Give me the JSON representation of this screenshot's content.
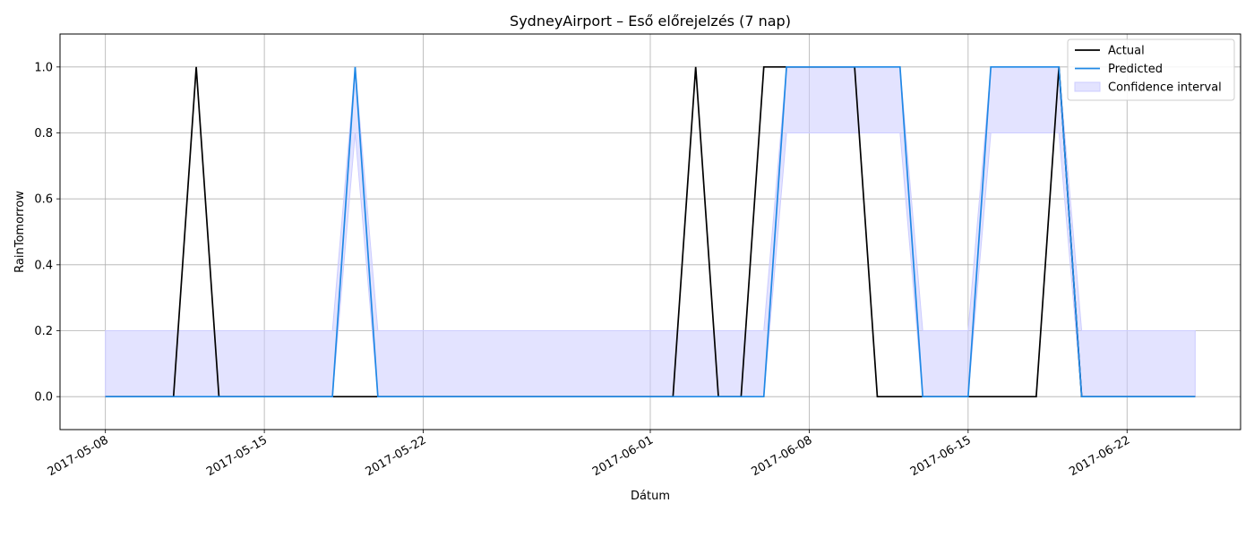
{
  "chart_data": {
    "type": "line",
    "title": "SydneyAirport – Eső előrejelzés (7 nap)",
    "xlabel": "Dátum",
    "ylabel": "RainTomorrow",
    "xlim": [
      "2017-05-06",
      "2017-06-27"
    ],
    "ylim": [
      -0.1,
      1.1
    ],
    "yticks": [
      0.0,
      0.2,
      0.4,
      0.6,
      0.8,
      1.0
    ],
    "ytick_labels": [
      "0.0",
      "0.2",
      "0.4",
      "0.6",
      "0.8",
      "1.0"
    ],
    "xticks": [
      "2017-05-08",
      "2017-05-15",
      "2017-05-22",
      "2017-06-01",
      "2017-06-08",
      "2017-06-15",
      "2017-06-22"
    ],
    "grid": true,
    "legend_position": "top-right",
    "series": [
      {
        "name": "Actual",
        "color": "#000000",
        "points": [
          [
            "2017-05-08",
            0
          ],
          [
            "2017-05-11",
            0
          ],
          [
            "2017-05-12",
            1
          ],
          [
            "2017-05-13",
            0
          ],
          [
            "2017-06-02",
            0
          ],
          [
            "2017-06-03",
            1
          ],
          [
            "2017-06-04",
            0
          ],
          [
            "2017-06-05",
            0
          ],
          [
            "2017-06-06",
            1
          ],
          [
            "2017-06-10",
            1
          ],
          [
            "2017-06-11",
            0
          ],
          [
            "2017-06-18",
            0
          ],
          [
            "2017-06-19",
            1
          ],
          [
            "2017-06-20",
            0
          ],
          [
            "2017-06-25",
            0
          ]
        ]
      },
      {
        "name": "Predicted",
        "color": "#1f88e5",
        "points": [
          [
            "2017-05-08",
            0
          ],
          [
            "2017-05-18",
            0
          ],
          [
            "2017-05-19",
            1
          ],
          [
            "2017-05-20",
            0
          ],
          [
            "2017-06-06",
            0
          ],
          [
            "2017-06-07",
            1
          ],
          [
            "2017-06-12",
            1
          ],
          [
            "2017-06-13",
            0
          ],
          [
            "2017-06-15",
            0
          ],
          [
            "2017-06-16",
            1
          ],
          [
            "2017-06-19",
            1
          ],
          [
            "2017-06-20",
            0
          ],
          [
            "2017-06-25",
            0
          ]
        ]
      }
    ],
    "confidence_interval": {
      "name": "Confidence interval",
      "color": "#ccccff",
      "upper": [
        [
          "2017-05-08",
          0.2
        ],
        [
          "2017-05-18",
          0.2
        ],
        [
          "2017-05-19",
          1
        ],
        [
          "2017-05-20",
          0.2
        ],
        [
          "2017-06-06",
          0.2
        ],
        [
          "2017-06-07",
          1
        ],
        [
          "2017-06-12",
          1
        ],
        [
          "2017-06-13",
          0.2
        ],
        [
          "2017-06-15",
          0.2
        ],
        [
          "2017-06-16",
          1
        ],
        [
          "2017-06-19",
          1
        ],
        [
          "2017-06-20",
          0.2
        ],
        [
          "2017-06-25",
          0.2
        ]
      ],
      "lower": [
        [
          "2017-05-08",
          0
        ],
        [
          "2017-05-18",
          0
        ],
        [
          "2017-05-19",
          0.8
        ],
        [
          "2017-05-20",
          0
        ],
        [
          "2017-06-06",
          0
        ],
        [
          "2017-06-07",
          0.8
        ],
        [
          "2017-06-12",
          0.8
        ],
        [
          "2017-06-13",
          0
        ],
        [
          "2017-06-15",
          0
        ],
        [
          "2017-06-16",
          0.8
        ],
        [
          "2017-06-19",
          0.8
        ],
        [
          "2017-06-20",
          0
        ],
        [
          "2017-06-25",
          0
        ]
      ]
    }
  }
}
